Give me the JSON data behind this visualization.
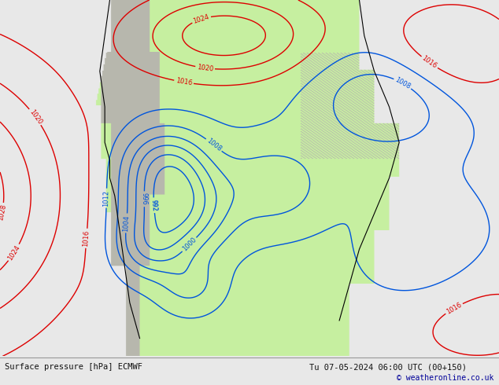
{
  "bottom_left": "Surface pressure [hPa] ECMWF",
  "bottom_center": "Tu 07-05-2024 06:00 UTC (00+150)",
  "bottom_right": "© weatheronline.co.uk",
  "bg_color": "#e8e8e8",
  "land_color_green": "#c8f0a0",
  "land_color_gray": "#b8b8a8",
  "ocean_color": "#e8e8e8",
  "fig_width": 6.34,
  "fig_height": 4.9,
  "dpi": 100,
  "bottom_bar_color": "#e0e0e0"
}
